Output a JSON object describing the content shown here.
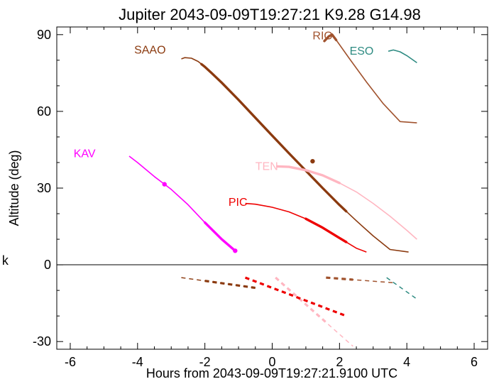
{
  "chart_data": {
    "type": "line",
    "title": "Jupiter 2043-09-09T19:27:21  K9.28  G14.98",
    "xlabel": "Hours from 2043-09-09T19:27:21.9100 UTC",
    "ylabel": "Altitude (deg)",
    "xlim": [
      -6.4,
      6.4
    ],
    "ylim": [
      -33,
      93
    ],
    "xticks": [
      -6,
      -4,
      -2,
      0,
      2,
      4,
      6
    ],
    "yticks": [
      -30,
      0,
      30,
      60,
      90
    ],
    "stray_label": "k",
    "grid": false,
    "series": [
      {
        "name": "SAAO",
        "color": "#8b3a0f",
        "x": [
          -2.7,
          -2.6,
          -2.4,
          -2.2,
          -2.0,
          -1.8,
          -1.5,
          -1.0,
          -0.5,
          0.0,
          0.5,
          1.0,
          1.5,
          2.0,
          2.5,
          3.0,
          3.5,
          4.05
        ],
        "y": [
          80.5,
          81.0,
          80.8,
          79.5,
          77.4,
          75.0,
          71.2,
          64.5,
          57.5,
          50.5,
          43.6,
          36.8,
          30.0,
          23.4,
          17.2,
          11.3,
          6.0,
          5.0
        ],
        "thick_x": [
          -2.1,
          2.2
        ],
        "marker": [
          1.2,
          40.5
        ],
        "below_x": [
          -2.7,
          -0.5
        ],
        "below_thick_x": [
          -2.0,
          -0.5
        ]
      },
      {
        "name": "RIO",
        "color": "#a0522d",
        "x": [
          1.55,
          1.68,
          1.78,
          1.85,
          1.95,
          2.3,
          2.8,
          3.3,
          3.8,
          4.3
        ],
        "y": [
          87.5,
          89.3,
          90.0,
          88.8,
          87.0,
          80.5,
          71.5,
          63.0,
          56.0,
          55.5
        ],
        "thick_x": [
          1.55,
          1.9
        ],
        "below_x": [
          1.6,
          3.6
        ],
        "below_thick_x": [
          1.6,
          2.4
        ]
      },
      {
        "name": "ESO",
        "color": "#2e8b82",
        "x": [
          3.45,
          3.6,
          3.8,
          4.0,
          4.3
        ],
        "y": [
          83.5,
          84.0,
          83.3,
          81.8,
          79.0
        ],
        "below_x": [
          3.4,
          4.3
        ]
      },
      {
        "name": "TEN",
        "color": "#ffb6c1",
        "x": [
          0.15,
          0.5,
          1.0,
          1.5,
          2.0,
          2.5,
          3.0,
          3.5,
          4.0,
          4.3
        ],
        "y": [
          38.5,
          38.3,
          37.0,
          35.0,
          32.0,
          28.5,
          24.0,
          19.0,
          13.5,
          10.0
        ],
        "thick_x": [
          0.15,
          2.0
        ],
        "below_x": [
          0.1,
          2.4
        ],
        "below_thick_x": [
          0.1,
          1.6
        ]
      },
      {
        "name": "PIC",
        "color": "#ee0000",
        "x": [
          -0.8,
          -0.5,
          0.0,
          0.5,
          1.0,
          1.5,
          2.0,
          2.5,
          2.8
        ],
        "y": [
          24.0,
          23.7,
          22.5,
          20.7,
          18.0,
          14.5,
          10.5,
          6.5,
          5.0
        ],
        "thick_x": [
          1.0,
          2.2
        ],
        "below_x": [
          -0.8,
          2.2
        ],
        "below_thick_x": [
          -0.8,
          2.2
        ]
      },
      {
        "name": "KAV",
        "color": "#ff00ff",
        "x": [
          -4.25,
          -4.0,
          -3.5,
          -3.2,
          -3.0,
          -2.5,
          -2.0,
          -1.5,
          -1.1
        ],
        "y": [
          42.5,
          40.0,
          34.5,
          31.5,
          29.5,
          23.5,
          16.5,
          10.0,
          5.5
        ],
        "thick_x": [
          -2.0,
          -1.1
        ],
        "marker": [
          -3.2,
          31.5
        ],
        "end_marker": [
          -1.1,
          5.5
        ]
      }
    ]
  }
}
